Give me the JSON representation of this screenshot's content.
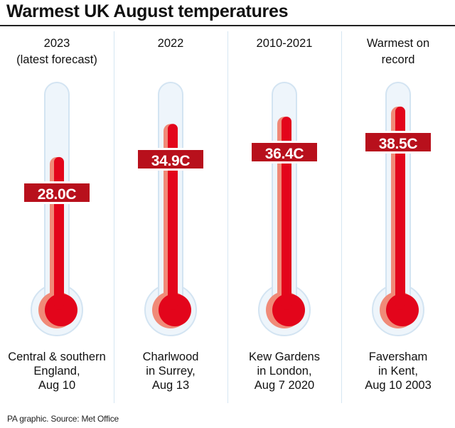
{
  "title": "Warmest UK August temperatures",
  "footer": "PA graphic. Source: Met Office",
  "colors": {
    "mercury": "#e3051b",
    "mercury_light": "#f08a78",
    "glass_fill": "#eef5fb",
    "glass_stroke": "#d3e4f2",
    "label_bg": "#b8101c"
  },
  "chart_data": {
    "type": "bar",
    "title": "Warmest UK August temperatures",
    "unit": "C",
    "categories": [
      "2023\n(latest forecast)",
      "2022",
      "2010-2021",
      "Warmest on\nrecord"
    ],
    "values": [
      28.0,
      34.9,
      36.4,
      38.5
    ],
    "value_labels": [
      "28.0C",
      "34.9C",
      "36.4C",
      "38.5C"
    ],
    "locations": [
      "Central & southern\nEngland,\nAug 10",
      "Charlwood\nin Surrey,\nAug 13",
      "Kew Gardens\nin London,\nAug 7 2020",
      "Faversham\nin Kent,\nAug 10 2003"
    ]
  }
}
